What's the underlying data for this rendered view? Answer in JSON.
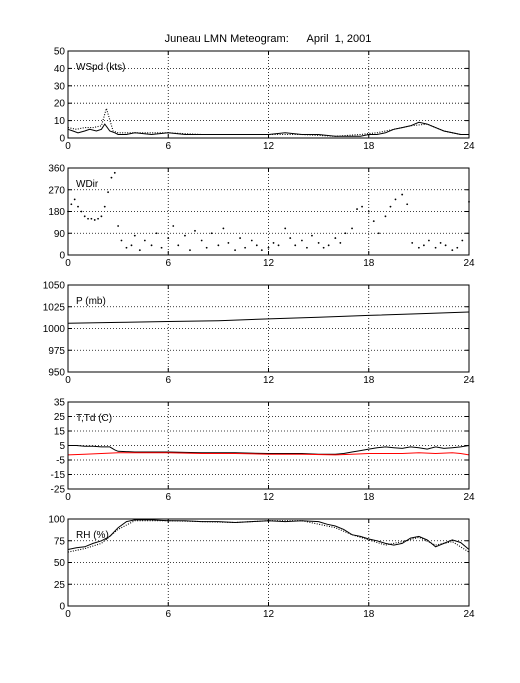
{
  "title": "Juneau LMN Meteogram:      April  1, 2001",
  "chart_data": [
    {
      "id": "wspd",
      "type": "line",
      "label": "WSpd (kts)",
      "xlim": [
        0,
        24
      ],
      "ylim": [
        0,
        50
      ],
      "xticks": [
        0,
        6,
        12,
        18,
        24
      ],
      "yticks": [
        0,
        10,
        20,
        30,
        40,
        50
      ],
      "grid": true,
      "series": [
        {
          "style": "solid",
          "color": "#000000",
          "x": [
            0,
            0.3,
            0.6,
            1,
            1.3,
            1.7,
            2,
            2.2,
            2.5,
            2.8,
            3,
            3.5,
            4,
            5,
            6,
            7,
            8,
            9,
            10,
            11,
            12,
            13,
            14,
            15,
            16,
            17,
            17.5,
            18,
            18.5,
            19,
            19.5,
            20,
            20.5,
            21,
            21.5,
            22,
            22.5,
            23,
            23.5,
            24
          ],
          "y": [
            5,
            4,
            3,
            4,
            5,
            4,
            5,
            8,
            4,
            3,
            2,
            2,
            3,
            2,
            3,
            2,
            2,
            2,
            2,
            2,
            2,
            3,
            2,
            2,
            1,
            1,
            1,
            2,
            2,
            3,
            5,
            6,
            7,
            9,
            8,
            6,
            4,
            3,
            2,
            2
          ]
        },
        {
          "style": "dotted",
          "color": "#000000",
          "x": [
            0,
            0.5,
            1,
            1.5,
            2,
            2.3,
            2.7,
            3,
            4,
            6,
            8,
            10,
            12,
            14,
            16,
            17.5,
            18.5,
            19.5,
            20.5,
            21.5,
            22.5,
            23.5,
            24
          ],
          "y": [
            6,
            5,
            6,
            6,
            7,
            17,
            4,
            3,
            3,
            3,
            2,
            2,
            2,
            2,
            1,
            2,
            3,
            5,
            7,
            8,
            4,
            2,
            2
          ]
        }
      ]
    },
    {
      "id": "wdir",
      "type": "scatter",
      "label": "WDir",
      "xlim": [
        0,
        24
      ],
      "ylim": [
        0,
        360
      ],
      "xticks": [
        0,
        6,
        12,
        18,
        24
      ],
      "yticks": [
        0,
        90,
        180,
        270,
        360
      ],
      "grid": true,
      "series": [
        {
          "style": "dotted",
          "color": "#000000",
          "x": [
            0,
            0.2,
            0.4,
            0.6,
            0.8,
            1,
            1.2,
            1.4,
            1.6,
            1.8,
            2,
            2.2,
            2.4,
            2.6,
            2.8,
            3,
            3.2,
            3.5,
            3.8,
            4,
            4.3,
            4.6,
            5,
            5.3,
            5.6,
            6,
            6.3,
            6.6,
            7,
            7.3,
            7.6,
            8,
            8.3,
            8.6,
            9,
            9.3,
            9.6,
            10,
            10.3,
            10.6,
            11,
            11.3,
            11.6,
            12,
            12.3,
            12.6,
            13,
            13.3,
            13.6,
            14,
            14.3,
            14.6,
            15,
            15.3,
            15.6,
            16,
            16.3,
            16.6,
            17,
            17.3,
            17.6,
            18,
            18.3,
            18.6,
            19,
            19.3,
            19.6,
            20,
            20.3,
            20.6,
            21,
            21.3,
            21.6,
            22,
            22.3,
            22.6,
            23,
            23.3,
            23.6,
            24
          ],
          "y": [
            180,
            210,
            230,
            200,
            180,
            160,
            150,
            150,
            145,
            150,
            160,
            200,
            260,
            320,
            340,
            120,
            60,
            30,
            40,
            80,
            20,
            60,
            40,
            90,
            30,
            70,
            120,
            40,
            80,
            20,
            100,
            60,
            30,
            90,
            40,
            110,
            50,
            20,
            70,
            30,
            60,
            40,
            20,
            30,
            50,
            40,
            110,
            70,
            40,
            60,
            30,
            80,
            50,
            30,
            40,
            70,
            50,
            90,
            110,
            190,
            200,
            180,
            140,
            90,
            160,
            200,
            230,
            250,
            210,
            50,
            30,
            40,
            60,
            30,
            50,
            40,
            20,
            30,
            60,
            220
          ]
        }
      ]
    },
    {
      "id": "pres",
      "type": "line",
      "label": "P (mb)",
      "xlim": [
        0,
        24
      ],
      "ylim": [
        950,
        1050
      ],
      "xticks": [
        0,
        6,
        12,
        18,
        24
      ],
      "yticks": [
        950,
        975,
        1000,
        1025,
        1050
      ],
      "grid": true,
      "series": [
        {
          "style": "solid",
          "color": "#000000",
          "x": [
            0,
            3,
            6,
            9,
            12,
            15,
            18,
            21,
            24
          ],
          "y": [
            1006,
            1007,
            1008,
            1009,
            1011,
            1013,
            1015,
            1017,
            1019
          ]
        }
      ]
    },
    {
      "id": "temp",
      "type": "line",
      "label": "T,Td (C)",
      "xlim": [
        0,
        24
      ],
      "ylim": [
        -25,
        35
      ],
      "xticks": [
        0,
        6,
        12,
        18,
        24
      ],
      "yticks": [
        -25,
        -15,
        -5,
        5,
        15,
        25,
        35
      ],
      "grid": true,
      "series": [
        {
          "style": "solid",
          "color": "#000000",
          "x": [
            0,
            0.5,
            1,
            1.5,
            2,
            2.5,
            2.8,
            3,
            4,
            6,
            8,
            10,
            12,
            14,
            15,
            16,
            16.5,
            17,
            17.5,
            18,
            18.5,
            19,
            19.5,
            20,
            20.5,
            21,
            21.5,
            22,
            22.5,
            23,
            23.5,
            24
          ],
          "y": [
            5,
            5,
            4.5,
            4.5,
            4,
            4,
            2,
            1,
            0.5,
            0.5,
            0,
            0,
            -0.5,
            -0.5,
            -1,
            -1,
            -0.5,
            0.5,
            1.5,
            2.5,
            3.5,
            4,
            3.5,
            3,
            4,
            3.5,
            2.5,
            4,
            3,
            3.5,
            4,
            5
          ]
        },
        {
          "style": "solid",
          "color": "#ff0000",
          "x": [
            0,
            1,
            2,
            3,
            4,
            6,
            8,
            10,
            12,
            14,
            16,
            17,
            18,
            19,
            20,
            21,
            22,
            23,
            23.5,
            24
          ],
          "y": [
            -1.5,
            -1,
            -0.5,
            0,
            0,
            0,
            -0.5,
            -0.5,
            -1,
            -1,
            -1.5,
            -1,
            -0.5,
            -0.5,
            -0.5,
            0,
            -0.5,
            0,
            -0.5,
            -1.5
          ]
        }
      ]
    },
    {
      "id": "rh",
      "type": "line",
      "label": "RH (%)",
      "xlim": [
        0,
        24
      ],
      "ylim": [
        0,
        100
      ],
      "xticks": [
        0,
        6,
        12,
        18,
        24
      ],
      "yticks": [
        0,
        25,
        50,
        75,
        100
      ],
      "grid": true,
      "series": [
        {
          "style": "solid",
          "color": "#000000",
          "x": [
            0,
            0.5,
            1,
            1.5,
            2,
            2.5,
            3,
            3.5,
            4,
            5,
            6,
            7,
            8,
            9,
            10,
            11,
            12,
            13,
            14,
            15,
            15.5,
            16,
            16.5,
            17,
            17.5,
            18,
            18.5,
            19,
            19.5,
            20,
            20.5,
            21,
            21.5,
            22,
            22.5,
            23,
            23.5,
            24
          ],
          "y": [
            65,
            67,
            68,
            72,
            75,
            80,
            90,
            97,
            99,
            99,
            98,
            98,
            97,
            97,
            96,
            97,
            98,
            97,
            98,
            97,
            94,
            92,
            88,
            82,
            80,
            77,
            75,
            72,
            70,
            72,
            78,
            80,
            76,
            68,
            72,
            76,
            73,
            65
          ]
        },
        {
          "style": "dotted",
          "color": "#000000",
          "x": [
            0,
            1,
            2,
            3,
            4,
            6,
            8,
            10,
            12,
            14,
            16,
            17,
            18,
            19,
            20,
            21,
            22,
            23,
            24
          ],
          "y": [
            62,
            66,
            72,
            88,
            98,
            98,
            97,
            96,
            98,
            98,
            90,
            82,
            76,
            70,
            74,
            79,
            70,
            74,
            62
          ]
        }
      ]
    }
  ]
}
